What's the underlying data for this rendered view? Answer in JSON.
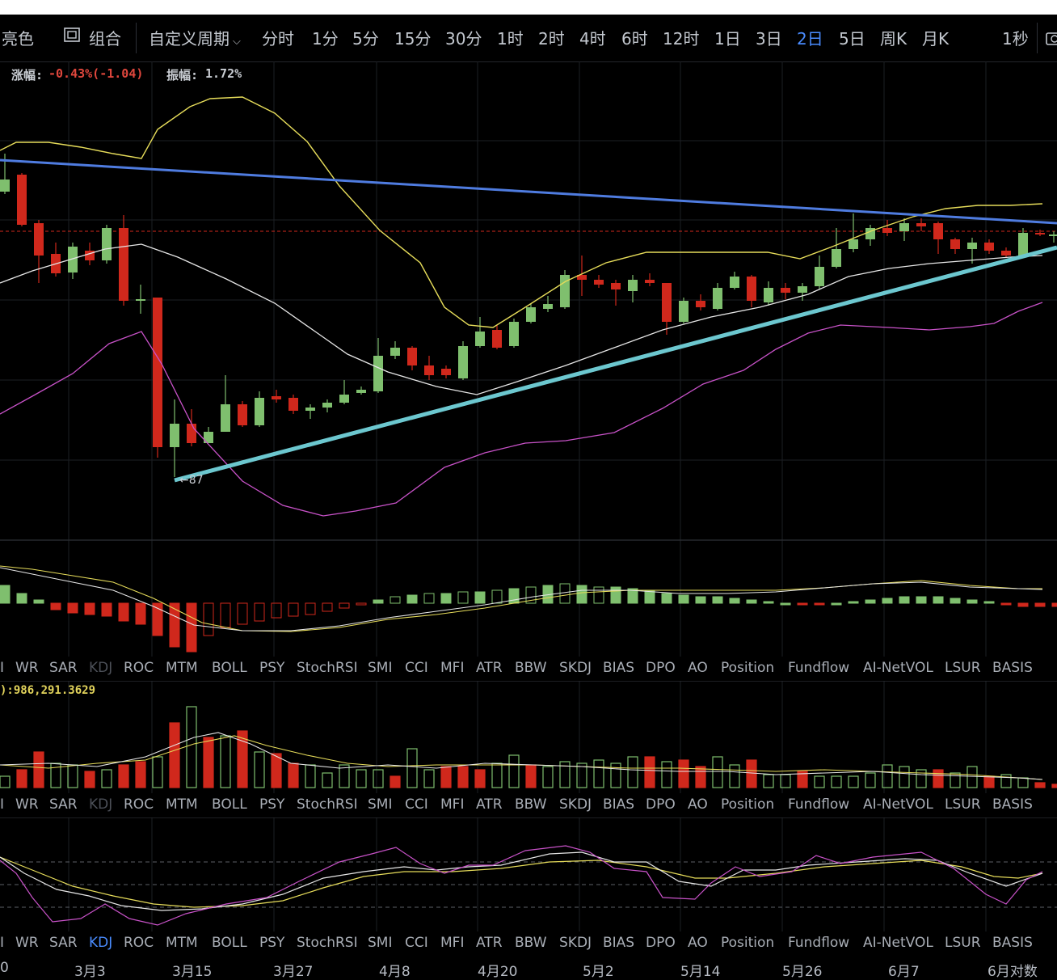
{
  "toolbar": {
    "theme_label": "亮色",
    "combo_label": "组合",
    "custom_period_label": "自定义周期",
    "periods": [
      "分时",
      "1分",
      "5分",
      "15分",
      "30分",
      "1时",
      "2时",
      "4时",
      "6时",
      "12时",
      "1日",
      "3日",
      "2日",
      "5日",
      "周K",
      "月K"
    ],
    "active_period": "2日",
    "right_label": "1秒"
  },
  "stats": {
    "change_label": "涨幅:",
    "change_value": "-0.43%(-1.04)",
    "amplitude_label": "振幅:",
    "amplitude_value": "1.72%"
  },
  "price_chart": {
    "low_marker": "←87",
    "colors": {
      "up": "#7fbf6e",
      "down": "#d0281c",
      "trendline_upper": "#4f7ce0",
      "trendline_lower": "#6cc7cf",
      "boll_upper": "#e6dc5a",
      "boll_mid": "#e6e6e6",
      "boll_lower": "#c852c8",
      "ref_line": "#d0281c"
    }
  },
  "indicator_tabs": [
    "I",
    "WR",
    "SAR",
    "KDJ",
    "ROC",
    "MTM",
    "BOLL",
    "PSY",
    "StochRSI",
    "SMI",
    "CCI",
    "MFI",
    "ATR",
    "BBW",
    "SKDJ",
    "BIAS",
    "DPO",
    "AO",
    "Position",
    "Fundflow",
    "AI-NetVOL",
    "LSUR",
    "BASIS"
  ],
  "indicator_rows": [
    {
      "active": "",
      "dim": "KDJ"
    },
    {
      "active": "",
      "dim": "KDJ"
    },
    {
      "active": "KDJ",
      "dim": ""
    }
  ],
  "volume_label": "):986,291.3629",
  "x_axis": {
    "labels": [
      "0",
      "3月3",
      "3月15",
      "3月27",
      "4月8",
      "4月20",
      "5月2",
      "5月14",
      "5月26",
      "6月7",
      "6月对数"
    ]
  }
}
